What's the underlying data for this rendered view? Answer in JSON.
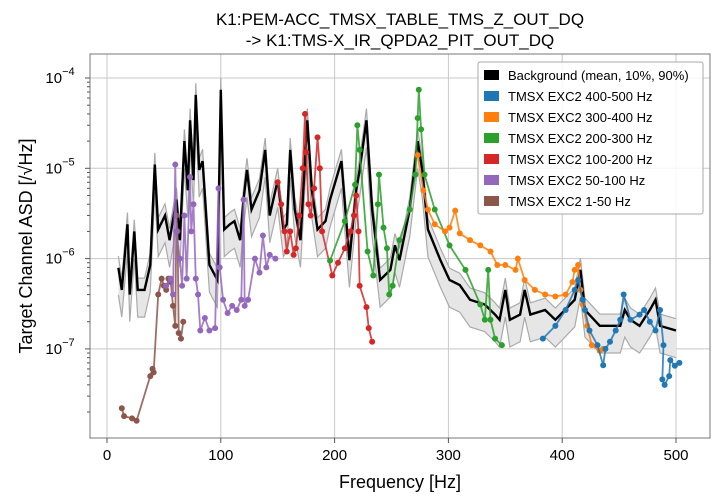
{
  "chart_data": {
    "type": "line",
    "title_lines": [
      "K1:PEM-ACC_TMSX_TABLE_TMS_Z_OUT_DQ",
      "-> K1:TMS-X_IR_QPDA2_PIT_OUT_DQ"
    ],
    "xlabel": "Frequency [Hz]",
    "ylabel": "Target Channel ASD [/√Hz]",
    "xscale": "linear",
    "yscale": "log",
    "xlim": [
      -15,
      530
    ],
    "ylim": [
      1e-08,
      0.000185
    ],
    "xticks": [
      0,
      100,
      200,
      300,
      400,
      500
    ],
    "xtick_labels": [
      "0",
      "100",
      "200",
      "300",
      "400",
      "500"
    ],
    "yticks": [
      0.0001,
      1e-05,
      1e-06,
      1e-07
    ],
    "ytick_labels": [
      {
        "base": "10",
        "exp": "−4"
      },
      {
        "base": "10",
        "exp": "−5"
      },
      {
        "base": "10",
        "exp": "−6"
      },
      {
        "base": "10",
        "exp": "−7"
      }
    ],
    "grid": true,
    "legend_position": "top-right",
    "background": {
      "name": "Background (mean, 10%, 90%)",
      "color": "#000000",
      "band_color": "#e6e6e6",
      "band_edge_color": "#aaaaaa",
      "p10_ratio": 0.5,
      "p90_ratio": 1.35,
      "mean": [
        [
          10,
          7.9e-07
        ],
        [
          13,
          4.5e-07
        ],
        [
          18,
          2.4e-06
        ],
        [
          20,
          4e-07
        ],
        [
          24,
          2e-06
        ],
        [
          27,
          4.5e-07
        ],
        [
          33,
          4.5e-07
        ],
        [
          38,
          8.5e-07
        ],
        [
          42,
          1.1e-05
        ],
        [
          45,
          2.1e-06
        ],
        [
          51,
          3e-06
        ],
        [
          55,
          1.6e-06
        ],
        [
          61,
          4.5e-06
        ],
        [
          64,
          1.6e-06
        ],
        [
          68,
          2e-05
        ],
        [
          71,
          5.7e-06
        ],
        [
          73,
          3.4e-05
        ],
        [
          76,
          7.4e-06
        ],
        [
          78,
          6.5e-05
        ],
        [
          81,
          9.6e-06
        ],
        [
          84,
          1.2e-05
        ],
        [
          90,
          8.5e-07
        ],
        [
          97,
          5.8e-07
        ],
        [
          100,
          7.4e-05
        ],
        [
          103,
          2.1e-06
        ],
        [
          108,
          2.4e-06
        ],
        [
          112,
          2.6e-06
        ],
        [
          117,
          1.6e-06
        ],
        [
          120,
          4.5e-06
        ],
        [
          123,
          9.6e-06
        ],
        [
          127,
          3.5e-06
        ],
        [
          134,
          5.7e-06
        ],
        [
          139,
          1.6e-05
        ],
        [
          143,
          3e-06
        ],
        [
          150,
          7.4e-06
        ],
        [
          155,
          2.1e-06
        ],
        [
          158,
          2.4e-06
        ],
        [
          161,
          1.6e-05
        ],
        [
          165,
          3.5e-06
        ],
        [
          170,
          1.6e-06
        ],
        [
          176,
          3.4e-05
        ],
        [
          180,
          5.7e-06
        ],
        [
          185,
          2.1e-06
        ],
        [
          192,
          2.6e-06
        ],
        [
          196,
          4.5e-06
        ],
        [
          206,
          1.2e-05
        ],
        [
          213,
          9.6e-07
        ],
        [
          219,
          5.7e-06
        ],
        [
          222,
          9.6e-06
        ],
        [
          228,
          3.4e-05
        ],
        [
          233,
          3.5e-06
        ],
        [
          240,
          5.8e-07
        ],
        [
          249,
          7.5e-07
        ],
        [
          253,
          1.4e-06
        ],
        [
          257,
          9.6e-07
        ],
        [
          266,
          3.5e-06
        ],
        [
          273,
          2e-05
        ],
        [
          277,
          9.6e-06
        ],
        [
          282,
          2.1e-06
        ],
        [
          293,
          9.6e-07
        ],
        [
          301,
          5.8e-07
        ],
        [
          310,
          5.1e-07
        ],
        [
          319,
          3.5e-07
        ],
        [
          332,
          3.1e-07
        ],
        [
          341,
          2.4e-07
        ],
        [
          345,
          2.1e-07
        ],
        [
          350,
          4.5e-07
        ],
        [
          354,
          2.1e-07
        ],
        [
          363,
          2.4e-07
        ],
        [
          367,
          4.5e-07
        ],
        [
          372,
          2.4e-07
        ],
        [
          385,
          2.7e-07
        ],
        [
          394,
          2.1e-07
        ],
        [
          411,
          3.5e-07
        ],
        [
          416,
          7.5e-07
        ],
        [
          420,
          2.7e-07
        ],
        [
          433,
          1.8e-07
        ],
        [
          451,
          1.8e-07
        ],
        [
          455,
          2.7e-07
        ],
        [
          460,
          2.1e-07
        ],
        [
          468,
          1.8e-07
        ],
        [
          477,
          2.7e-07
        ],
        [
          482,
          3.5e-07
        ],
        [
          486,
          1.8e-07
        ],
        [
          500,
          1.6e-07
        ]
      ]
    },
    "series": [
      {
        "name": "TMSX EXC2 400-500 Hz",
        "color": "#1f77b4",
        "points": [
          [
            383,
            1.3e-07
          ],
          [
            394,
            1.8e-07
          ],
          [
            403,
            2.7e-07
          ],
          [
            411,
            4.5e-07
          ],
          [
            414,
            5.8e-07
          ],
          [
            418,
            3.5e-07
          ],
          [
            420,
            2.7e-07
          ],
          [
            424,
            1.6e-07
          ],
          [
            431,
            1.1e-07
          ],
          [
            436,
            6.6e-08
          ],
          [
            438,
            1e-07
          ],
          [
            442,
            1.2e-07
          ],
          [
            447,
            1.6e-07
          ],
          [
            451,
            2.1e-07
          ],
          [
            454,
            4e-07
          ],
          [
            460,
            2.1e-07
          ],
          [
            468,
            2.4e-07
          ],
          [
            472,
            2.7e-07
          ],
          [
            477,
            2e-07
          ],
          [
            482,
            1.6e-07
          ],
          [
            486,
            2.7e-07
          ],
          [
            489,
            1.1e-07
          ],
          [
            488,
            4.6e-08
          ],
          [
            490,
            4e-08
          ],
          [
            494,
            5e-08
          ],
          [
            495,
            7.5e-08
          ],
          [
            499,
            6.5e-08
          ],
          [
            503,
            7e-08
          ]
        ]
      },
      {
        "name": "TMSX EXC2 300-400 Hz",
        "color": "#ff7f0e",
        "points": [
          [
            273,
            1.4e-05
          ],
          [
            278,
            5.7e-06
          ],
          [
            282,
            3.5e-06
          ],
          [
            288,
            2.4e-06
          ],
          [
            297,
            2e-06
          ],
          [
            301,
            2.2e-06
          ],
          [
            306,
            3.4e-06
          ],
          [
            310,
            1.9e-06
          ],
          [
            319,
            1.6e-06
          ],
          [
            328,
            1.4e-06
          ],
          [
            337,
            1.2e-06
          ],
          [
            343,
            8.5e-07
          ],
          [
            350,
            8.5e-07
          ],
          [
            359,
            7.5e-07
          ],
          [
            361,
            1e-06
          ],
          [
            367,
            5.8e-07
          ],
          [
            376,
            4.5e-07
          ],
          [
            385,
            4e-07
          ],
          [
            394,
            3.8e-07
          ],
          [
            403,
            4e-07
          ],
          [
            409,
            5.5e-07
          ],
          [
            411,
            7.5e-07
          ],
          [
            414,
            8.5e-07
          ],
          [
            416,
            4.5e-07
          ],
          [
            418,
            3.1e-07
          ],
          [
            422,
            1.8e-07
          ],
          [
            426,
            1.1e-07
          ],
          [
            433,
            9.5e-08
          ],
          [
            436,
            1e-07
          ]
        ]
      },
      {
        "name": "TMSX EXC2 200-300 Hz",
        "color": "#2ca02c",
        "points": [
          [
            196,
            9.5e-07
          ],
          [
            209,
            2.6e-06
          ],
          [
            218,
            6.6e-06
          ],
          [
            220,
            3e-05
          ],
          [
            222,
            1.6e-05
          ],
          [
            229,
            1.2e-06
          ],
          [
            234,
            6.5e-07
          ],
          [
            238,
            4e-06
          ],
          [
            239,
            8.5e-06
          ],
          [
            243,
            2.2e-06
          ],
          [
            246,
            1.3e-06
          ],
          [
            248,
            4e-07
          ],
          [
            251,
            5e-07
          ],
          [
            257,
            1.6e-06
          ],
          [
            266,
            3.5e-06
          ],
          [
            271,
            8.5e-06
          ],
          [
            273,
            3.6e-05
          ],
          [
            274,
            7.4e-05
          ],
          [
            276,
            2.7e-05
          ],
          [
            279,
            8.5e-06
          ],
          [
            288,
            3.5e-06
          ],
          [
            301,
            1.4e-06
          ],
          [
            315,
            7.5e-07
          ],
          [
            328,
            3.1e-07
          ],
          [
            332,
            2.1e-07
          ],
          [
            335,
            7.5e-07
          ],
          [
            337,
            2.1e-07
          ],
          [
            341,
            1.3e-07
          ],
          [
            347,
            1.1e-07
          ]
        ]
      },
      {
        "name": "TMSX EXC2 100-200 Hz",
        "color": "#d62728",
        "points": [
          [
            150,
            7e-06
          ],
          [
            153,
            4e-06
          ],
          [
            156,
            2e-06
          ],
          [
            158,
            1.2e-06
          ],
          [
            161,
            2e-06
          ],
          [
            164,
            1.1e-06
          ],
          [
            166,
            1.3e-06
          ],
          [
            169,
            3e-06
          ],
          [
            172,
            1e-05
          ],
          [
            174,
            4e-05
          ],
          [
            175,
            1.5e-05
          ],
          [
            177,
            4e-06
          ],
          [
            179,
            3e-06
          ],
          [
            182,
            6e-06
          ],
          [
            185,
            2.2e-05
          ],
          [
            187,
            1e-05
          ],
          [
            189,
            2e-06
          ],
          [
            198,
            6.5e-07
          ],
          [
            203,
            9e-07
          ],
          [
            209,
            1.3e-06
          ],
          [
            214,
            2e-06
          ],
          [
            217,
            3e-06
          ],
          [
            219,
            5e-06
          ],
          [
            221,
            2e-06
          ],
          [
            222,
            5e-07
          ],
          [
            228,
            2.9e-07
          ],
          [
            230,
            1.7e-07
          ],
          [
            233,
            1.2e-07
          ]
        ]
      },
      {
        "name": "TMSX EXC2 50-100 Hz",
        "color": "#9467bd",
        "points": [
          [
            52,
            5e-07
          ],
          [
            56,
            6e-07
          ],
          [
            58,
            4e-07
          ],
          [
            60,
            1.1e-05
          ],
          [
            61,
            2e-06
          ],
          [
            64,
            1e-06
          ],
          [
            66,
            5e-07
          ],
          [
            68,
            3e-06
          ],
          [
            70,
            6e-07
          ],
          [
            73,
            8e-06
          ],
          [
            74,
            2e-06
          ],
          [
            76,
            4e-06
          ],
          [
            78,
            6e-07
          ],
          [
            80,
            4e-07
          ],
          [
            82,
            1.6e-07
          ],
          [
            86,
            2.2e-07
          ],
          [
            90,
            1.6e-07
          ],
          [
            95,
            1.7e-07
          ],
          [
            98,
            6e-06
          ],
          [
            99,
            8e-07
          ],
          [
            102,
            3.5e-07
          ],
          [
            106,
            2.5e-07
          ],
          [
            110,
            3e-07
          ],
          [
            114,
            2.7e-07
          ],
          [
            118,
            3.5e-07
          ],
          [
            120,
            4.5e-06
          ],
          [
            121,
            3e-07
          ],
          [
            124,
            3.5e-07
          ],
          [
            130,
            1e-06
          ],
          [
            134,
            7e-07
          ],
          [
            137,
            1.8e-06
          ],
          [
            140,
            8e-07
          ],
          [
            143,
            1.1e-06
          ],
          [
            148,
            1e-06
          ]
        ]
      },
      {
        "name": "TMSX EXC2 1-50 Hz",
        "color": "#8c564b",
        "points": [
          [
            13,
            2.2e-08
          ],
          [
            15,
            1.8e-08
          ],
          [
            22,
            1.7e-08
          ],
          [
            26,
            1.6e-08
          ],
          [
            38,
            5e-08
          ],
          [
            40,
            6e-08
          ],
          [
            41,
            5.5e-08
          ],
          [
            45,
            4e-07
          ],
          [
            48,
            6e-07
          ],
          [
            50,
            5e-07
          ],
          [
            52,
            4.5e-07
          ],
          [
            54,
            6e-07
          ],
          [
            56,
            5.5e-07
          ],
          [
            58,
            3e-07
          ],
          [
            60,
            1.8e-07
          ],
          [
            61,
            3e-06
          ],
          [
            62,
            2e-06
          ],
          [
            63,
            1.5e-07
          ],
          [
            65,
            1.3e-07
          ],
          [
            67,
            2e-07
          ]
        ]
      }
    ]
  }
}
